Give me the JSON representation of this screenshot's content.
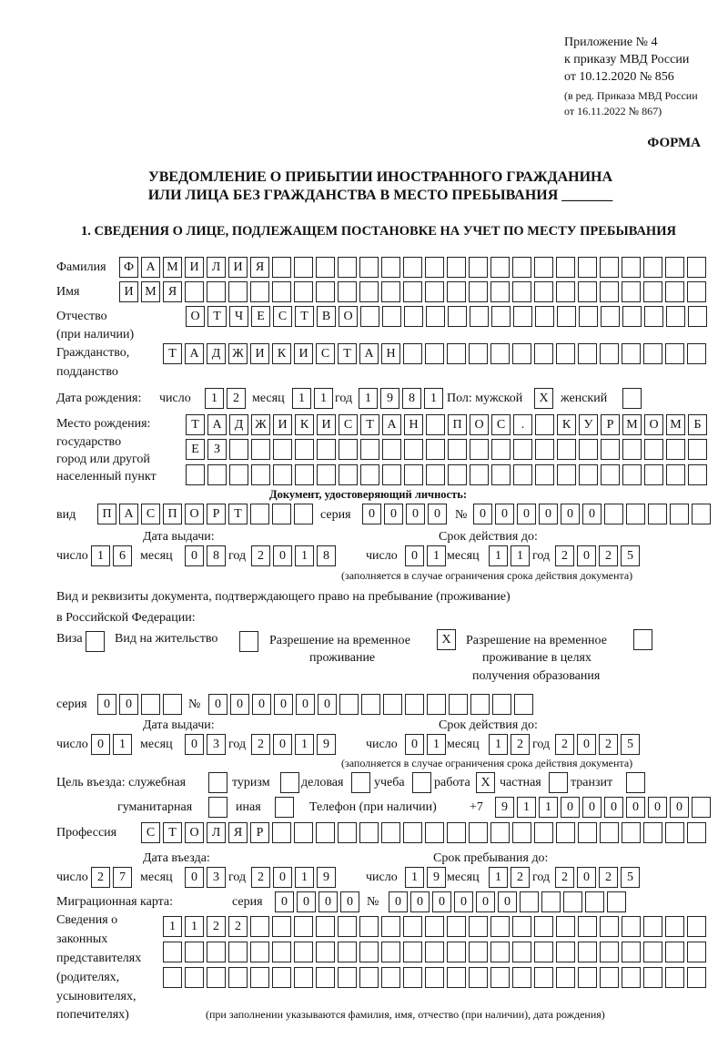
{
  "header": {
    "appendix": [
      "Приложение № 4",
      "к приказу МВД России",
      "от 10.12.2020 № 856"
    ],
    "amendment": [
      "(в ред. Приказа МВД России",
      "от 16.11.2022 № 867)"
    ],
    "form_label": "ФОРМА",
    "title_line1": "УВЕДОМЛЕНИЕ О ПРИБЫТИИ ИНОСТРАННОГО ГРАЖДАНИНА",
    "title_line2": "ИЛИ ЛИЦА БЕЗ ГРАЖДАНСТВА В МЕСТО ПРЕБЫВАНИЯ _______",
    "section1": "1. СВЕДЕНИЯ О ЛИЦЕ, ПОДЛЕЖАЩЕМ ПОСТАНОВКЕ НА УЧЕТ ПО МЕСТУ ПРЕБЫВАНИЯ"
  },
  "labels": {
    "surname": "Фамилия",
    "name": "Имя",
    "patronymic": "Отчество",
    "patronymic_note": "(при наличии)",
    "citizenship": "Гражданство,",
    "citizenship2": "подданство",
    "birth_date": "Дата рождения:",
    "day": "число",
    "month": "месяц",
    "year": "год",
    "sex": "Пол: мужской",
    "female": "женский",
    "birthplace": [
      "Место рождения:",
      "государство",
      "город или другой",
      "населенный пункт"
    ],
    "id_doc": "Документ, удостоверяющий личность:",
    "kind": "вид",
    "series": "серия",
    "number": "№",
    "issue_date": "Дата выдачи:",
    "valid_until": "Срок действия до:",
    "validity_note": "(заполняется в случае ограничения срока действия документа)",
    "right_doc1": "Вид и реквизиты документа, подтверждающего право на пребывание (проживание)",
    "right_doc2": "в Российской Федерации:",
    "visa": "Виза",
    "residence": "Вид на жительство",
    "temp_permit": [
      "Разрешение на временное",
      "проживание"
    ],
    "edu_permit": [
      "Разрешение на временное",
      "проживание в целях",
      "получения образования"
    ],
    "purpose": "Цель въезда: служебная",
    "tourism": "туризм",
    "business": "деловая",
    "study": "учеба",
    "work": "работа",
    "private": "частная",
    "transit": "транзит",
    "humanitarian": "гуманитарная",
    "other": "иная",
    "phone": "Телефон (при наличии)",
    "phone_prefix": "+7",
    "profession": "Профессия",
    "entry_date": "Дата въезда:",
    "stay_until": "Срок пребывания до:",
    "migration_card": "Миграционная карта:",
    "reps": [
      "Сведения о",
      "законных",
      "представителях",
      "(родителях,",
      "усыновителях,",
      "попечителях)"
    ],
    "reps_note": "(при заполнении указываются фамилия, имя, отчество (при наличии), дата рождения)"
  },
  "fields": {
    "surname": [
      "Ф",
      "А",
      "М",
      "И",
      "Л",
      "И",
      "Я"
    ],
    "name": [
      "И",
      "М",
      "Я"
    ],
    "patronymic": [
      "О",
      "Т",
      "Ч",
      "Е",
      "С",
      "Т",
      "В",
      "О"
    ],
    "citizenship": [
      "Т",
      "А",
      "Д",
      "Ж",
      "И",
      "К",
      "И",
      "С",
      "Т",
      "А",
      "Н"
    ],
    "birth_day": [
      "1",
      "2"
    ],
    "birth_month": [
      "1",
      "1"
    ],
    "birth_year": [
      "1",
      "9",
      "8",
      "1"
    ],
    "sex_male": [
      "X"
    ],
    "sex_female": [],
    "birthplace1": [
      "Т",
      "А",
      "Д",
      "Ж",
      "И",
      "К",
      "И",
      "С",
      "Т",
      "А",
      "Н",
      "",
      "П",
      "О",
      "С",
      ".",
      "",
      "К",
      "У",
      "Р",
      "М",
      "О",
      "М",
      "Б"
    ],
    "birthplace2": [
      "Е",
      "З"
    ],
    "birthplace3": [],
    "id_kind": [
      "П",
      "А",
      "С",
      "П",
      "О",
      "Р",
      "Т"
    ],
    "id_series": [
      "0",
      "0",
      "0",
      "0"
    ],
    "id_number": [
      "0",
      "0",
      "0",
      "0",
      "0",
      "0"
    ],
    "id_issue_day": [
      "1",
      "6"
    ],
    "id_issue_month": [
      "0",
      "8"
    ],
    "id_issue_year": [
      "2",
      "0",
      "1",
      "8"
    ],
    "id_valid_day": [
      "0",
      "1"
    ],
    "id_valid_month": [
      "1",
      "1"
    ],
    "id_valid_year": [
      "2",
      "0",
      "2",
      "5"
    ],
    "doc_visa": [],
    "doc_residence": [],
    "doc_temp_permit": [
      "X"
    ],
    "doc_edu_permit": [],
    "doc_series": [
      "0",
      "0"
    ],
    "doc_number": [
      "0",
      "0",
      "0",
      "0",
      "0",
      "0"
    ],
    "doc_issue_day": [
      "0",
      "1"
    ],
    "doc_issue_month": [
      "0",
      "3"
    ],
    "doc_issue_year": [
      "2",
      "0",
      "1",
      "9"
    ],
    "doc_valid_day": [
      "0",
      "1"
    ],
    "doc_valid_month": [
      "1",
      "2"
    ],
    "doc_valid_year": [
      "2",
      "0",
      "2",
      "5"
    ],
    "p_official": [],
    "p_tourism": [],
    "p_business": [],
    "p_study": [],
    "p_work": [
      "X"
    ],
    "p_private": [],
    "p_transit": [],
    "p_humanitarian": [],
    "p_other": [],
    "phone": [
      "9",
      "1",
      "1",
      "0",
      "0",
      "0",
      "0",
      "0",
      "0"
    ],
    "profession": [
      "С",
      "Т",
      "О",
      "Л",
      "Я",
      "Р"
    ],
    "entry_day": [
      "2",
      "7"
    ],
    "entry_month": [
      "0",
      "3"
    ],
    "entry_year": [
      "2",
      "0",
      "1",
      "9"
    ],
    "stay_day": [
      "1",
      "9"
    ],
    "stay_month": [
      "1",
      "2"
    ],
    "stay_year": [
      "2",
      "0",
      "2",
      "5"
    ],
    "mig_series": [
      "0",
      "0",
      "0",
      "0"
    ],
    "mig_number": [
      "0",
      "0",
      "0",
      "0",
      "0",
      "0"
    ],
    "reps1": [
      "1",
      "1",
      "2",
      "2"
    ],
    "reps2": [],
    "reps3": []
  }
}
